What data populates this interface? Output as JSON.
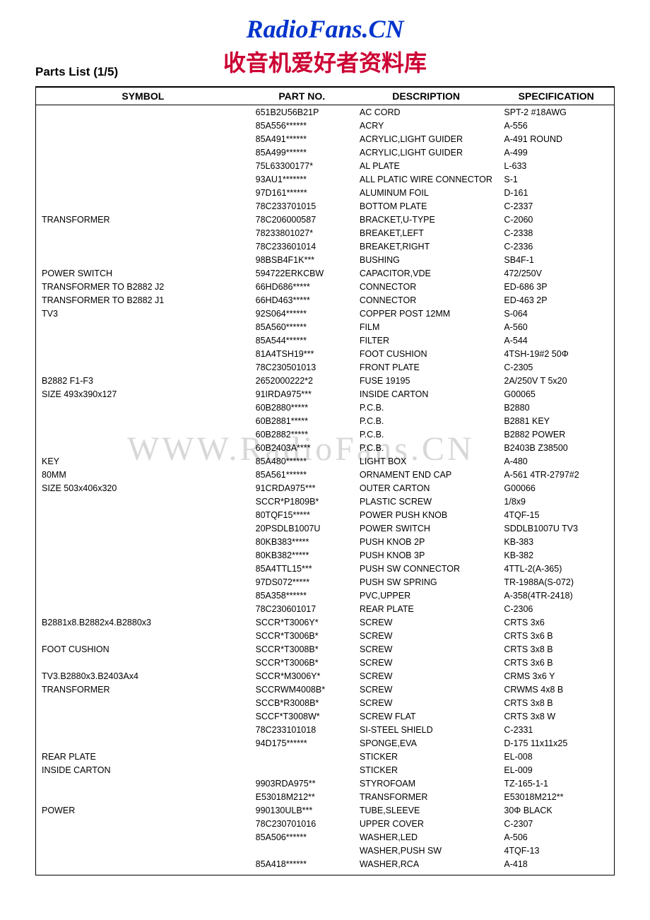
{
  "header": {
    "brand_title": "RadioFans.CN",
    "chinese_subtitle": "收音机爱好者资料库",
    "page_title": "Parts List (1/5)"
  },
  "watermark": "WWW.RadioFans.CN",
  "table": {
    "columns": {
      "symbol": "SYMBOL",
      "part_no": "PART NO.",
      "description": "DESCRIPTION",
      "specification": "SPECIFICATION"
    },
    "rows": [
      {
        "symbol": "",
        "part_no": "651B2U56B21P",
        "description": "AC CORD",
        "specification": "SPT-2 #18AWG"
      },
      {
        "symbol": "",
        "part_no": "85A556******",
        "description": "ACRY",
        "specification": "A-556"
      },
      {
        "symbol": "",
        "part_no": "85A491******",
        "description": "ACRYLIC,LIGHT GUIDER",
        "specification": "A-491 ROUND"
      },
      {
        "symbol": "",
        "part_no": "85A499******",
        "description": "ACRYLIC,LIGHT GUIDER",
        "specification": "A-499"
      },
      {
        "symbol": "",
        "part_no": "75L63300177*",
        "description": "AL PLATE",
        "specification": "L-633"
      },
      {
        "symbol": "",
        "part_no": "93AU1*******",
        "description": "ALL PLATIC WIRE CONNECTOR",
        "specification": "S-1",
        "desc_small": true
      },
      {
        "symbol": "",
        "part_no": "97D161******",
        "description": "ALUMINUM FOIL",
        "specification": "D-161"
      },
      {
        "symbol": "",
        "part_no": "78C233701015",
        "description": "BOTTOM PLATE",
        "specification": "C-2337"
      },
      {
        "symbol": "TRANSFORMER",
        "part_no": "78C206000587",
        "description": "BRACKET,U-TYPE",
        "specification": "C-2060"
      },
      {
        "symbol": "",
        "part_no": "78233801027*",
        "description": "BREAKET,LEFT",
        "specification": "C-2338"
      },
      {
        "symbol": "",
        "part_no": "78C233601014",
        "description": "BREAKET,RIGHT",
        "specification": "C-2336"
      },
      {
        "symbol": "",
        "part_no": "98BSB4F1K***",
        "description": "BUSHING",
        "specification": "SB4F-1"
      },
      {
        "symbol": "POWER SWITCH",
        "part_no": "594722ERKCBW",
        "description": "CAPACITOR,VDE",
        "specification": "472/250V"
      },
      {
        "symbol": "TRANSFORMER TO B2882 J2",
        "part_no": "66HD686*****",
        "description": "CONNECTOR",
        "specification": "ED-686 3P"
      },
      {
        "symbol": "TRANSFORMER TO B2882 J1",
        "part_no": "66HD463*****",
        "description": "CONNECTOR",
        "specification": "ED-463 2P"
      },
      {
        "symbol": "TV3",
        "part_no": "92S064******",
        "description": "COPPER POST 12MM",
        "specification": "S-064"
      },
      {
        "symbol": "",
        "part_no": "85A560******",
        "description": "FILM",
        "specification": "A-560"
      },
      {
        "symbol": "",
        "part_no": "85A544******",
        "description": "FILTER",
        "specification": "A-544"
      },
      {
        "symbol": "",
        "part_no": "81A4TSH19***",
        "description": "FOOT CUSHION",
        "specification": "4TSH-19#2 50Φ"
      },
      {
        "symbol": "",
        "part_no": "78C230501013",
        "description": "FRONT PLATE",
        "specification": "C-2305"
      },
      {
        "symbol": "B2882 F1-F3",
        "part_no": "2652000222*2",
        "description": "FUSE 19195",
        "specification": "2A/250V T 5x20"
      },
      {
        "symbol": "SIZE 493x390x127",
        "part_no": "91IRDA975***",
        "description": "INSIDE CARTON",
        "specification": "G00065"
      },
      {
        "symbol": "",
        "part_no": "60B2880*****",
        "description": "P.C.B.",
        "specification": "B2880"
      },
      {
        "symbol": "",
        "part_no": "60B2881*****",
        "description": "P.C.B.",
        "specification": "B2881 KEY"
      },
      {
        "symbol": "",
        "part_no": "60B2882*****",
        "description": "P.C.B.",
        "specification": "B2882 POWER"
      },
      {
        "symbol": "",
        "part_no": "60B2403A****",
        "description": "P.C.B.",
        "specification": "B2403B Z38500"
      },
      {
        "symbol": "KEY",
        "part_no": "85A480******",
        "description": "LIGHT BOX",
        "specification": "A-480"
      },
      {
        "symbol": "80MM",
        "part_no": "85A561******",
        "description": "ORNAMENT END CAP",
        "specification": "A-561 4TR-2797#2"
      },
      {
        "symbol": "SIZE 503x406x320",
        "part_no": "91CRDA975***",
        "description": "OUTER CARTON",
        "specification": "G00066"
      },
      {
        "symbol": "",
        "part_no": "SCCR*P1809B*",
        "description": "PLASTIC SCREW",
        "specification": "1/8x9"
      },
      {
        "symbol": "",
        "part_no": "80TQF15*****",
        "description": "POWER PUSH KNOB",
        "specification": "4TQF-15"
      },
      {
        "symbol": "",
        "part_no": "20PSDLB1007U",
        "description": "POWER SWITCH",
        "specification": "SDDLB1007U TV3"
      },
      {
        "symbol": "",
        "part_no": "80KB383*****",
        "description": "PUSH KNOB 2P",
        "specification": "KB-383"
      },
      {
        "symbol": "",
        "part_no": "80KB382*****",
        "description": "PUSH KNOB 3P",
        "specification": "KB-382"
      },
      {
        "symbol": "",
        "part_no": "85A4TTL15***",
        "description": "PUSH SW CONNECTOR",
        "specification": "4TTL-2(A-365)"
      },
      {
        "symbol": "",
        "part_no": "97DS072*****",
        "description": "PUSH SW SPRING",
        "specification": "TR-1988A(S-072)"
      },
      {
        "symbol": "",
        "part_no": "85A358******",
        "description": "PVC,UPPER",
        "specification": "A-358(4TR-2418)"
      },
      {
        "symbol": "",
        "part_no": "78C230601017",
        "description": "REAR PLATE",
        "specification": "C-2306"
      },
      {
        "symbol": "B2881x8.B2882x4.B2880x3",
        "part_no": "SCCR*T3006Y*",
        "description": "SCREW",
        "specification": "CRTS 3x6"
      },
      {
        "symbol": "",
        "part_no": "SCCR*T3006B*",
        "description": "SCREW",
        "specification": "CRTS 3x6 B"
      },
      {
        "symbol": "FOOT CUSHION",
        "part_no": "SCCR*T3008B*",
        "description": "SCREW",
        "specification": "CRTS 3x8 B"
      },
      {
        "symbol": "",
        "part_no": "SCCR*T3006B*",
        "description": "SCREW",
        "specification": "CRTS 3x6 B"
      },
      {
        "symbol": "TV3.B2880x3.B2403Ax4",
        "part_no": "SCCR*M3006Y*",
        "description": "SCREW",
        "specification": "CRMS 3x6 Y"
      },
      {
        "symbol": "TRANSFORMER",
        "part_no": "SCCRWM4008B*",
        "description": "SCREW",
        "specification": "CRWMS 4x8 B"
      },
      {
        "symbol": "",
        "part_no": "SCCB*R3008B*",
        "description": "SCREW",
        "specification": "CRTS  3x8 B"
      },
      {
        "symbol": "",
        "part_no": "SCCF*T3008W*",
        "description": "SCREW   FLAT",
        "specification": "CRTS  3x8 W"
      },
      {
        "symbol": "",
        "part_no": "78C233101018",
        "description": "SI-STEEL SHIELD",
        "specification": "C-2331"
      },
      {
        "symbol": "",
        "part_no": "94D175******",
        "description": "SPONGE,EVA",
        "specification": "D-175 11x11x25"
      },
      {
        "symbol": "REAR PLATE",
        "part_no": "",
        "description": "STICKER",
        "specification": "EL-008"
      },
      {
        "symbol": "INSIDE CARTON",
        "part_no": "",
        "description": "STICKER",
        "specification": "EL-009"
      },
      {
        "symbol": "",
        "part_no": "9903RDA975**",
        "description": "STYROFOAM",
        "specification": "TZ-165-1-1"
      },
      {
        "symbol": "",
        "part_no": "E53018M212**",
        "description": "TRANSFORMER",
        "specification": "E53018M212**"
      },
      {
        "symbol": "POWER",
        "part_no": "990130ULB***",
        "description": "TUBE,SLEEVE",
        "specification": "30Φ BLACK"
      },
      {
        "symbol": "",
        "part_no": "78C230701016",
        "description": "UPPER COVER",
        "specification": "C-2307"
      },
      {
        "symbol": "",
        "part_no": "85A506******",
        "description": "WASHER,LED",
        "specification": "A-506"
      },
      {
        "symbol": "",
        "part_no": "",
        "description": "WASHER,PUSH SW",
        "specification": "4TQF-13"
      },
      {
        "symbol": "",
        "part_no": "85A418******",
        "description": "WASHER,RCA",
        "specification": "A-418"
      }
    ]
  },
  "styling": {
    "brand_color": "#0033cc",
    "subtitle_color": "#cc0033",
    "text_color": "#000000",
    "background_color": "#ffffff",
    "watermark_color": "#d8d8d8",
    "brand_fontsize": 36,
    "subtitle_fontsize": 32,
    "page_title_fontsize": 17,
    "th_fontsize": 14,
    "td_fontsize": 12.5,
    "small_td_fontsize": 10.5
  }
}
